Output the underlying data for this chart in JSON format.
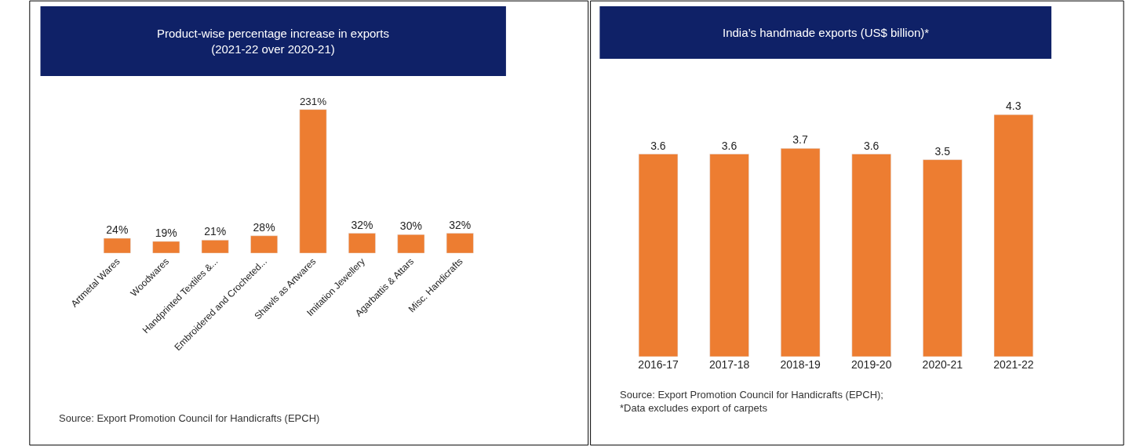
{
  "chart_data": [
    {
      "type": "bar",
      "title": "Product-wise percentage increase in exports\n(2021-22 over 2020-21)",
      "categories": [
        "Artmetal Wares",
        "Woodwares",
        "Handprinted Textiles &...",
        "Embroidered and Crocheted...",
        "Shawls as Artwares",
        "Imitation Jewellery",
        "Agarbattis & Attars",
        "Misc. Handicrafts"
      ],
      "values": [
        24,
        19,
        21,
        28,
        231,
        32,
        30,
        32
      ],
      "value_labels": [
        "24%",
        "19%",
        "21%",
        "28%",
        "231%",
        "32%",
        "30%",
        "32%"
      ],
      "color": "#ed7d31",
      "annotations": [
        "Source: Export Promotion Council for Handicrafts (EPCH)"
      ]
    },
    {
      "type": "bar",
      "title": "India’s handmade exports (US$ billion)*",
      "categories": [
        "2016-17",
        "2017-18",
        "2018-19",
        "2019-20",
        "2020-21",
        "2021-22"
      ],
      "values": [
        3.6,
        3.6,
        3.7,
        3.6,
        3.5,
        4.3
      ],
      "data_labels": true,
      "color": "#ed7d31",
      "annotations": [
        "Source: Export Promotion Council for Handicrafts (EPCH);",
        "*Data excludes export of carpets"
      ]
    }
  ]
}
